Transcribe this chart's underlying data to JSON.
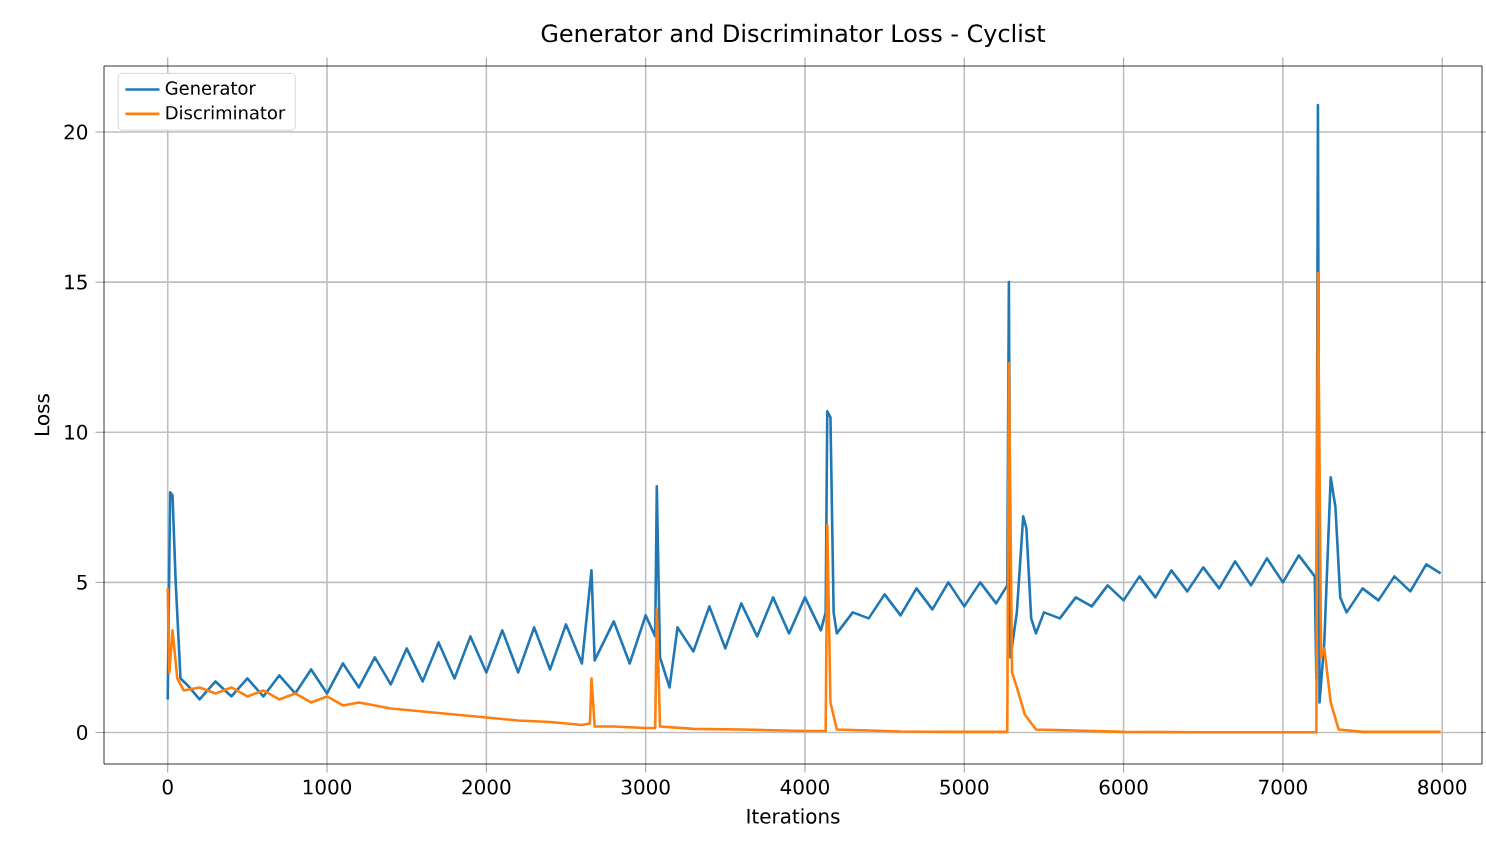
{
  "chart_data": {
    "type": "line",
    "title": "Generator and Discriminator Loss - Cyclist",
    "xlabel": "Iterations",
    "ylabel": "Loss",
    "xlim": [
      -400,
      8250
    ],
    "ylim": [
      -1.05,
      22.2
    ],
    "xticks": [
      0,
      1000,
      2000,
      3000,
      4000,
      5000,
      6000,
      7000,
      8000
    ],
    "yticks": [
      0,
      5,
      10,
      15,
      20
    ],
    "grid": true,
    "legend": "top left",
    "series": [
      {
        "name": "Generator",
        "color": "#1f77b4",
        "x": [
          0,
          15,
          30,
          50,
          80,
          120,
          200,
          300,
          400,
          500,
          600,
          700,
          800,
          900,
          1000,
          1100,
          1200,
          1300,
          1400,
          1500,
          1600,
          1700,
          1800,
          1900,
          2000,
          2100,
          2200,
          2300,
          2400,
          2500,
          2600,
          2660,
          2680,
          2800,
          2900,
          3000,
          3060,
          3070,
          3090,
          3150,
          3200,
          3300,
          3400,
          3500,
          3600,
          3700,
          3800,
          3900,
          4000,
          4100,
          4130,
          4140,
          4160,
          4180,
          4200,
          4300,
          4400,
          4500,
          4600,
          4700,
          4800,
          4900,
          5000,
          5100,
          5200,
          5270,
          5280,
          5290,
          5330,
          5370,
          5390,
          5420,
          5450,
          5500,
          5600,
          5700,
          5800,
          5900,
          6000,
          6100,
          6200,
          6300,
          6400,
          6500,
          6600,
          6700,
          6800,
          6900,
          7000,
          7100,
          7200,
          7210,
          7220,
          7230,
          7260,
          7300,
          7330,
          7360,
          7400,
          7500,
          7600,
          7700,
          7800,
          7900,
          7990
        ],
        "values": [
          1.1,
          8.0,
          7.9,
          5,
          1.8,
          1.6,
          1.1,
          1.7,
          1.2,
          1.8,
          1.2,
          1.9,
          1.3,
          2.1,
          1.3,
          2.3,
          1.5,
          2.5,
          1.6,
          2.8,
          1.7,
          3.0,
          1.8,
          3.2,
          2.0,
          3.4,
          2.0,
          3.5,
          2.1,
          3.6,
          2.3,
          5.4,
          2.4,
          3.7,
          2.3,
          3.9,
          3.2,
          8.2,
          2.5,
          1.5,
          3.5,
          2.7,
          4.2,
          2.8,
          4.3,
          3.2,
          4.5,
          3.3,
          4.5,
          3.4,
          4.0,
          10.7,
          10.5,
          4.0,
          3.3,
          4.0,
          3.8,
          4.6,
          3.9,
          4.8,
          4.1,
          5.0,
          4.2,
          5.0,
          4.3,
          4.9,
          15.0,
          2.5,
          4.0,
          7.2,
          6.8,
          3.8,
          3.3,
          4.0,
          3.8,
          4.5,
          4.2,
          4.9,
          4.4,
          5.2,
          4.5,
          5.4,
          4.7,
          5.5,
          4.8,
          5.7,
          4.9,
          5.8,
          5.0,
          5.9,
          5.2,
          1.8,
          20.9,
          1.0,
          3.0,
          8.5,
          7.5,
          4.5,
          4.0,
          4.8,
          4.4,
          5.2,
          4.7,
          5.6,
          5.3
        ]
      },
      {
        "name": "Discriminator",
        "color": "#ff7f0e",
        "x": [
          0,
          10,
          30,
          60,
          100,
          200,
          300,
          400,
          500,
          600,
          700,
          800,
          900,
          1000,
          1100,
          1200,
          1400,
          1600,
          1800,
          2000,
          2200,
          2400,
          2600,
          2650,
          2660,
          2680,
          2800,
          3000,
          3060,
          3070,
          3090,
          3300,
          3600,
          4000,
          4130,
          4140,
          4160,
          4200,
          4600,
          5000,
          5270,
          5280,
          5300,
          5330,
          5380,
          5450,
          6000,
          6500,
          7210,
          7220,
          7240,
          7260,
          7300,
          7350,
          7500,
          7990
        ],
        "values": [
          4.8,
          2.0,
          3.4,
          1.8,
          1.4,
          1.5,
          1.3,
          1.5,
          1.2,
          1.4,
          1.1,
          1.3,
          1.0,
          1.2,
          0.9,
          1.0,
          0.8,
          0.7,
          0.6,
          0.5,
          0.4,
          0.35,
          0.25,
          0.3,
          1.8,
          0.2,
          0.2,
          0.15,
          0.15,
          4.1,
          0.2,
          0.12,
          0.1,
          0.05,
          0.05,
          6.9,
          1.0,
          0.1,
          0.03,
          0.02,
          0.02,
          12.3,
          2.0,
          1.5,
          0.6,
          0.1,
          0.02,
          0.01,
          0.01,
          15.3,
          2.5,
          2.8,
          1.0,
          0.1,
          0.02,
          0.02
        ]
      }
    ]
  }
}
